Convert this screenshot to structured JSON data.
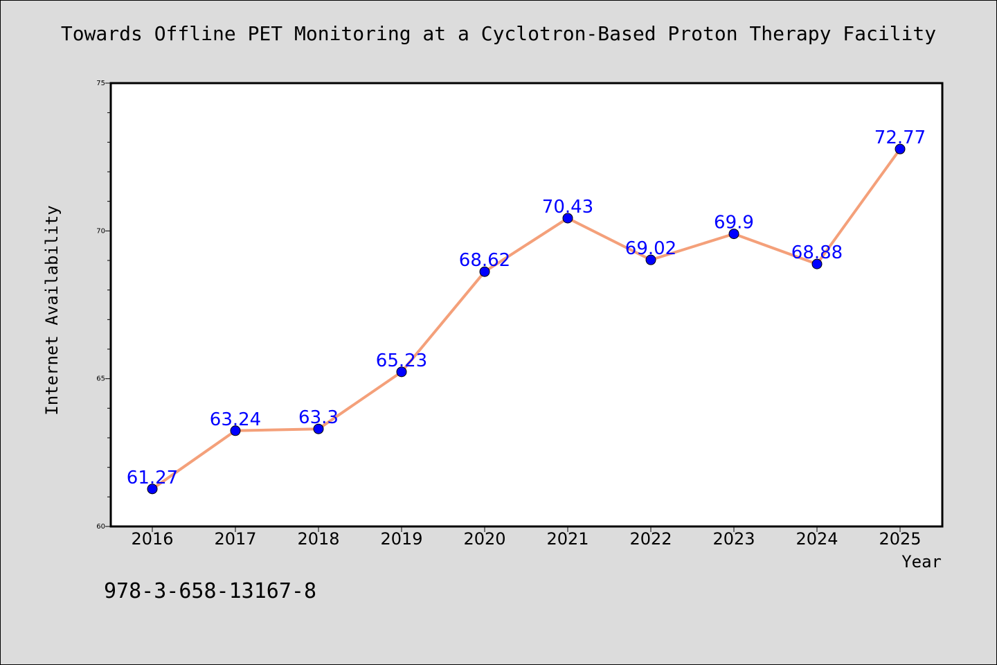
{
  "chart_data": {
    "type": "line",
    "title": "Towards Offline PET Monitoring at a Cyclotron-Based Proton Therapy Facility",
    "xlabel": "Year",
    "ylabel": "Internet Availability",
    "categories": [
      "2016",
      "2017",
      "2018",
      "2019",
      "2020",
      "2021",
      "2022",
      "2023",
      "2024",
      "2025"
    ],
    "series": [
      {
        "values": [
          61.27,
          63.24,
          63.3,
          65.23,
          68.62,
          70.43,
          69.02,
          69.9,
          68.88,
          72.77
        ],
        "data_labels": [
          "61.27",
          "63.24",
          "63.3",
          "65.23",
          "68.62",
          "70.43",
          "69.02",
          "69.9",
          "68.88",
          "72.77"
        ],
        "line_color": "#f4a07a",
        "marker_color": "#0000ff"
      }
    ],
    "ylim": [
      60,
      75
    ],
    "yticks": [
      "60",
      "65",
      "70",
      "75"
    ],
    "grid": false,
    "legend": "none"
  },
  "footer_note": "978-3-658-13167-8",
  "colors": {
    "background": "#dcdcdc",
    "plot_background": "#ffffff",
    "line": "#f4a07a",
    "marker": "#0000ff",
    "data_label": "#0000ff"
  }
}
